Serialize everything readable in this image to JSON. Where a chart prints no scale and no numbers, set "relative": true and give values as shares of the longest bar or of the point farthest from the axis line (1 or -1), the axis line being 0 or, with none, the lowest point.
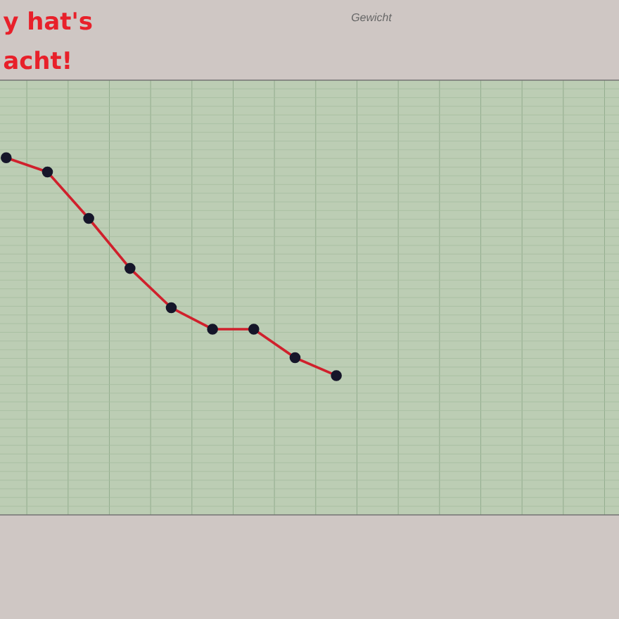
{
  "chart_data": {
    "type": "line",
    "title": "Gewicht",
    "annotations": [
      "y hat's",
      "acht!"
    ],
    "categories": [
      null,
      null,
      null,
      null,
      null,
      null,
      null,
      null,
      null,
      null,
      null,
      null,
      null,
      null,
      null
    ],
    "relative": true,
    "series": [
      {
        "color": "#d0202c",
        "values": [
          1,
          0.96,
          0.83,
          0.69,
          0.58,
          0.52,
          0.52,
          0.44,
          0.39,
          null,
          null,
          null,
          null,
          null,
          null
        ]
      }
    ],
    "grid": true,
    "marker": "circle",
    "line_style": "solid"
  }
}
